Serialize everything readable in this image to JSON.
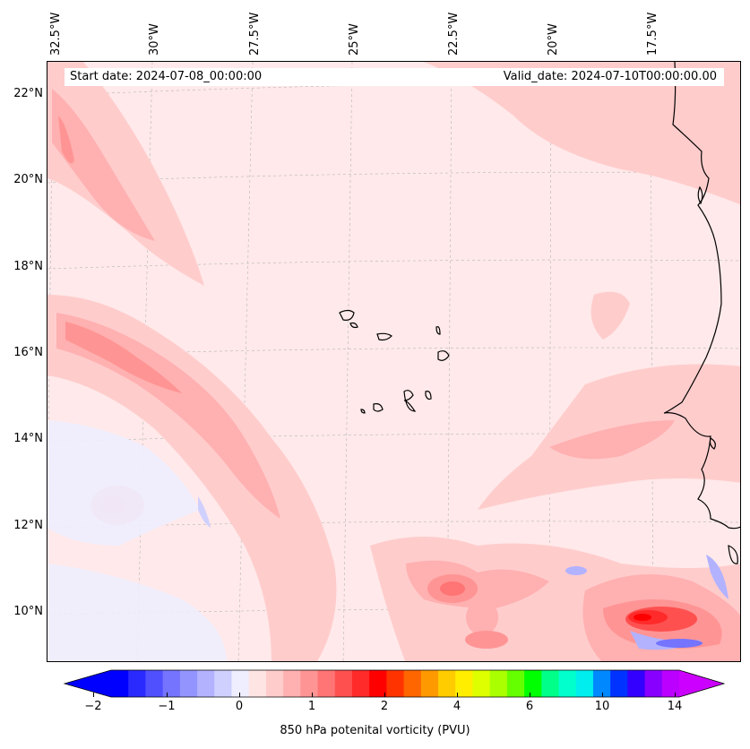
{
  "map": {
    "start_date_text": "Start date: 2024-07-08_00:00:00",
    "valid_date_text": "Valid_date: 2024-07-10T00:00:00.00",
    "lon_labels": [
      "32.5°W",
      "30°W",
      "27.5°W",
      "25°W",
      "22.5°W",
      "20°W",
      "17.5°W"
    ],
    "lat_labels": [
      "22°N",
      "20°N",
      "18°N",
      "16°N",
      "14°N",
      "12°N",
      "10°N"
    ],
    "background_color": "#ffe9ea",
    "coastline_color": "#000000"
  },
  "colorbar": {
    "label": "850 hPa potenital vorticity (PVU)",
    "tick_labels": [
      "−2",
      "−1",
      "0",
      "1",
      "2",
      "4",
      "6",
      "10",
      "14"
    ],
    "colors": [
      "#0000ff",
      "#2a2aff",
      "#5050ff",
      "#7474ff",
      "#9494ff",
      "#b2b2ff",
      "#d0d0ff",
      "#eeeeff",
      "#ffe4e4",
      "#ffcccc",
      "#ffb0b0",
      "#ff9494",
      "#ff7474",
      "#ff5050",
      "#ff2a2a",
      "#ff0000",
      "#ff3300",
      "#ff6600",
      "#ff9900",
      "#ffcc00",
      "#ffee00",
      "#ddff00",
      "#aaff00",
      "#66ff00",
      "#00ff00",
      "#00ff88",
      "#00ffcc",
      "#00eeee",
      "#0088ff",
      "#0033ff",
      "#3300ff",
      "#8800ff",
      "#bb00ff"
    ]
  }
}
